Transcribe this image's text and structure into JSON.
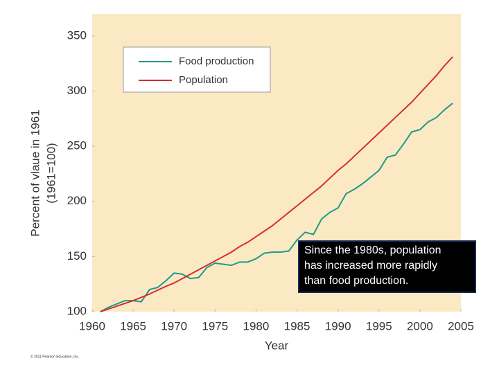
{
  "chart_data": {
    "type": "line",
    "x_label": "Year",
    "y_label": [
      "Percent of vlaue in 1961",
      "(1961=100)"
    ],
    "x": [
      1961,
      1962,
      1963,
      1964,
      1965,
      1966,
      1967,
      1968,
      1969,
      1970,
      1971,
      1972,
      1973,
      1974,
      1975,
      1976,
      1977,
      1978,
      1979,
      1980,
      1981,
      1982,
      1983,
      1984,
      1985,
      1986,
      1987,
      1988,
      1989,
      1990,
      1991,
      1992,
      1993,
      1994,
      1995,
      1996,
      1997,
      1998,
      1999,
      2000,
      2001,
      2002,
      2003,
      2004
    ],
    "series": [
      {
        "name": "Food production",
        "color": "#1f9a86",
        "values": [
          100,
          104,
          107,
          110,
          110,
          109,
          120,
          122,
          128,
          135,
          134,
          130,
          131,
          140,
          144,
          143,
          142,
          145,
          145,
          148,
          153,
          154,
          154,
          155,
          165,
          172,
          170,
          184,
          190,
          194,
          207,
          211,
          216,
          222,
          228,
          240,
          242,
          252,
          263,
          265,
          272,
          276,
          283,
          289
        ]
      },
      {
        "name": "Population",
        "color": "#d42f2f",
        "values": [
          100,
          102.5,
          105,
          107.5,
          110,
          113,
          116,
          119.5,
          123,
          126,
          130,
          134,
          138,
          142,
          146,
          150,
          154,
          159,
          163,
          168,
          173,
          178,
          184,
          190,
          196,
          202,
          208,
          214,
          221,
          228,
          234,
          241,
          248,
          255,
          262,
          269,
          276,
          283,
          290,
          298,
          306,
          314,
          323,
          331
        ]
      }
    ],
    "xlim": [
      1960,
      2005
    ],
    "ylim": [
      100,
      370
    ],
    "xticks": [
      1960,
      1965,
      1970,
      1975,
      1980,
      1985,
      1990,
      1995,
      2000,
      2005
    ],
    "yticks": [
      100,
      150,
      200,
      250,
      300,
      350
    ],
    "grid": false,
    "legend": "top-left",
    "annotation": [
      "Since the 1980s, population",
      "has increased more rapidly",
      "than food production."
    ],
    "credit": "© 2011 Pearson Education, Inc."
  }
}
